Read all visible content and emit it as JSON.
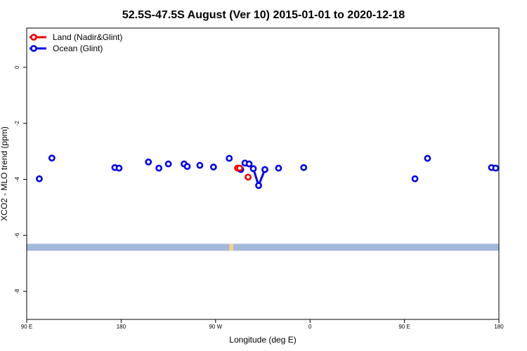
{
  "chart_data": {
    "type": "scatter",
    "title": "52.5S-47.5S August (Ver 10)   2015-01-01 to 2020-12-18",
    "xlabel": "Longitude (deg E)",
    "ylabel": "XCO2 - MLO trend (ppm)",
    "xlim": [
      90,
      540
    ],
    "ylim": [
      -9.0,
      1.4
    ],
    "x_ticks": [
      {
        "value": 90,
        "label": "90 E"
      },
      {
        "value": 180,
        "label": "180"
      },
      {
        "value": 270,
        "label": "90 W"
      },
      {
        "value": 360,
        "label": "0"
      },
      {
        "value": 450,
        "label": "90 E"
      },
      {
        "value": 540,
        "label": "180"
      }
    ],
    "y_ticks": [
      {
        "value": 0,
        "label": "0"
      },
      {
        "value": -2,
        "label": "-2"
      },
      {
        "value": -4,
        "label": "-4"
      },
      {
        "value": -6,
        "label": "-6"
      },
      {
        "value": -8,
        "label": "-8"
      }
    ],
    "legend_position": "top-left",
    "grid": false,
    "series": [
      {
        "name": "Land (Nadir&Glint)",
        "color": "#ee0000",
        "x": [
          291,
          293,
          301
        ],
        "y": [
          -3.6,
          -3.6,
          -3.92
        ]
      },
      {
        "name": "Ocean (Glint)",
        "color": "#0000ee",
        "x": [
          102,
          114,
          174,
          178,
          206,
          216,
          225,
          240,
          243,
          255,
          268,
          283,
          294,
          298,
          302,
          306,
          311,
          317,
          330,
          354,
          460,
          472,
          533,
          537
        ],
        "y": [
          -3.98,
          -3.24,
          -3.58,
          -3.6,
          -3.38,
          -3.6,
          -3.45,
          -3.45,
          -3.54,
          -3.5,
          -3.56,
          -3.25,
          -3.65,
          -3.42,
          -3.45,
          -3.62,
          -4.22,
          -3.65,
          -3.6,
          -3.58,
          -3.98,
          -3.25,
          -3.58,
          -3.6
        ]
      }
    ],
    "connected_segments": [
      {
        "series": 1,
        "from": 14,
        "to": 17
      }
    ],
    "landmask": {
      "y_range": [
        -6.3,
        -6.55
      ],
      "ocean_color": "#a4b8da",
      "land_color": "#f5d48a",
      "land_spans": [
        [
          283,
          287
        ]
      ]
    }
  }
}
